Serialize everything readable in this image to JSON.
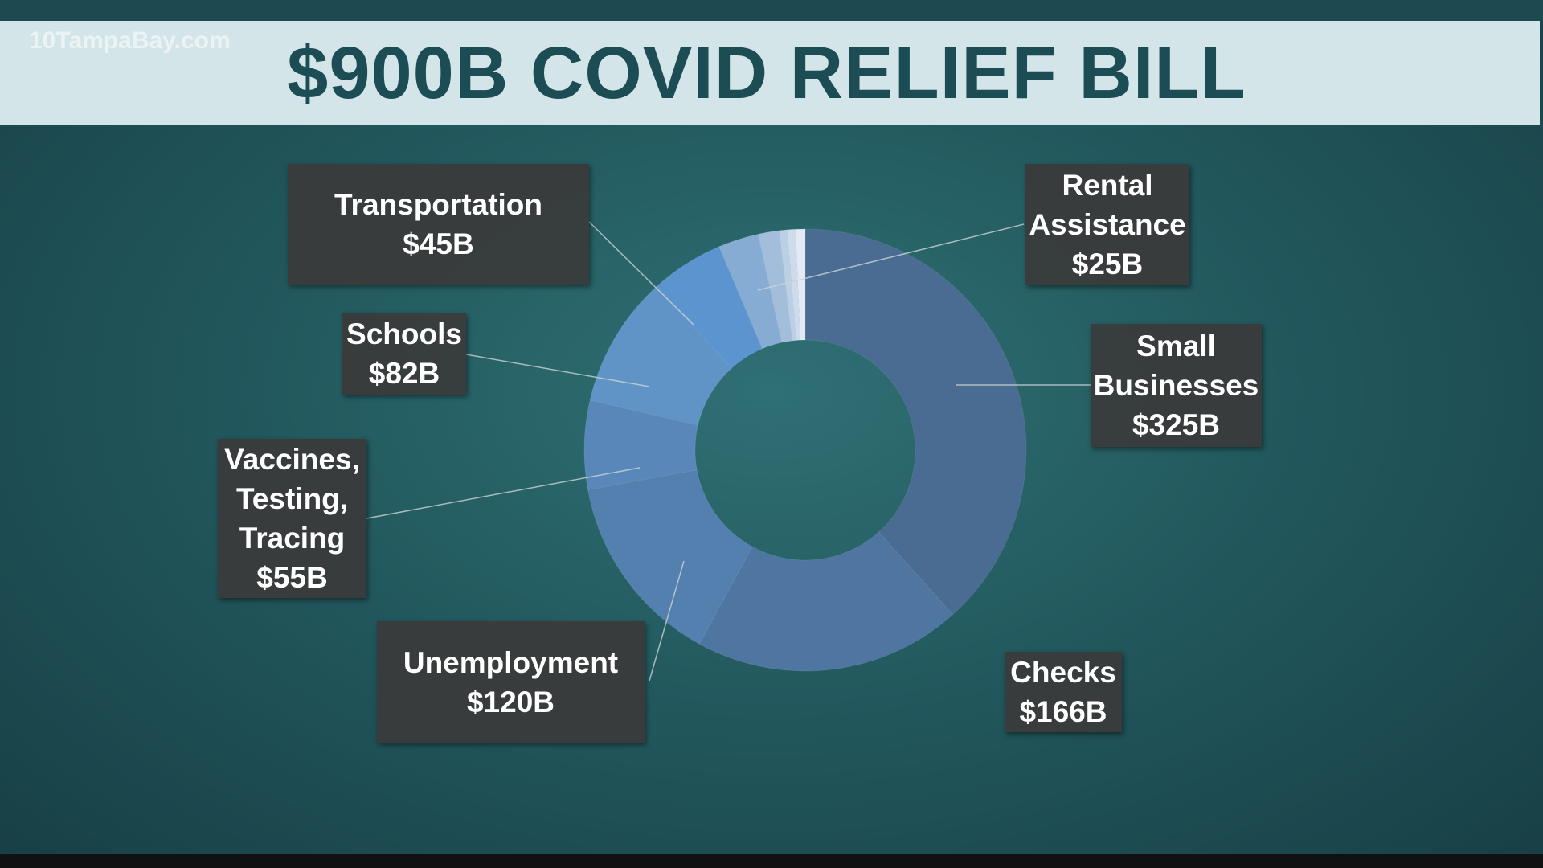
{
  "watermark": "10TampaBay.com",
  "chart_data": {
    "type": "donut",
    "title": "$900B COVID RELIEF BILL",
    "categories": [
      "Small Businesses",
      "Checks",
      "Unemployment",
      "Vaccines, Testing, Tracing",
      "Schools",
      "Transportation",
      "Rental Assistance",
      null,
      null,
      null,
      null
    ],
    "values": [
      325,
      166,
      120,
      55,
      82,
      45,
      25,
      13,
      5,
      5,
      6
    ],
    "value_labels": [
      "$325B",
      "$166B",
      "$120B",
      "$55B",
      "$82B",
      "$45B",
      "$25B",
      null,
      null,
      null,
      null
    ],
    "colors": [
      "#4a6c92",
      "#4e76a1",
      "#5480b0",
      "#5987b9",
      "#6093c6",
      "#5b94cf",
      "#86acd4",
      "#a3bedb",
      "#bccfe5",
      "#cddcec",
      "#e2eaf3"
    ]
  }
}
